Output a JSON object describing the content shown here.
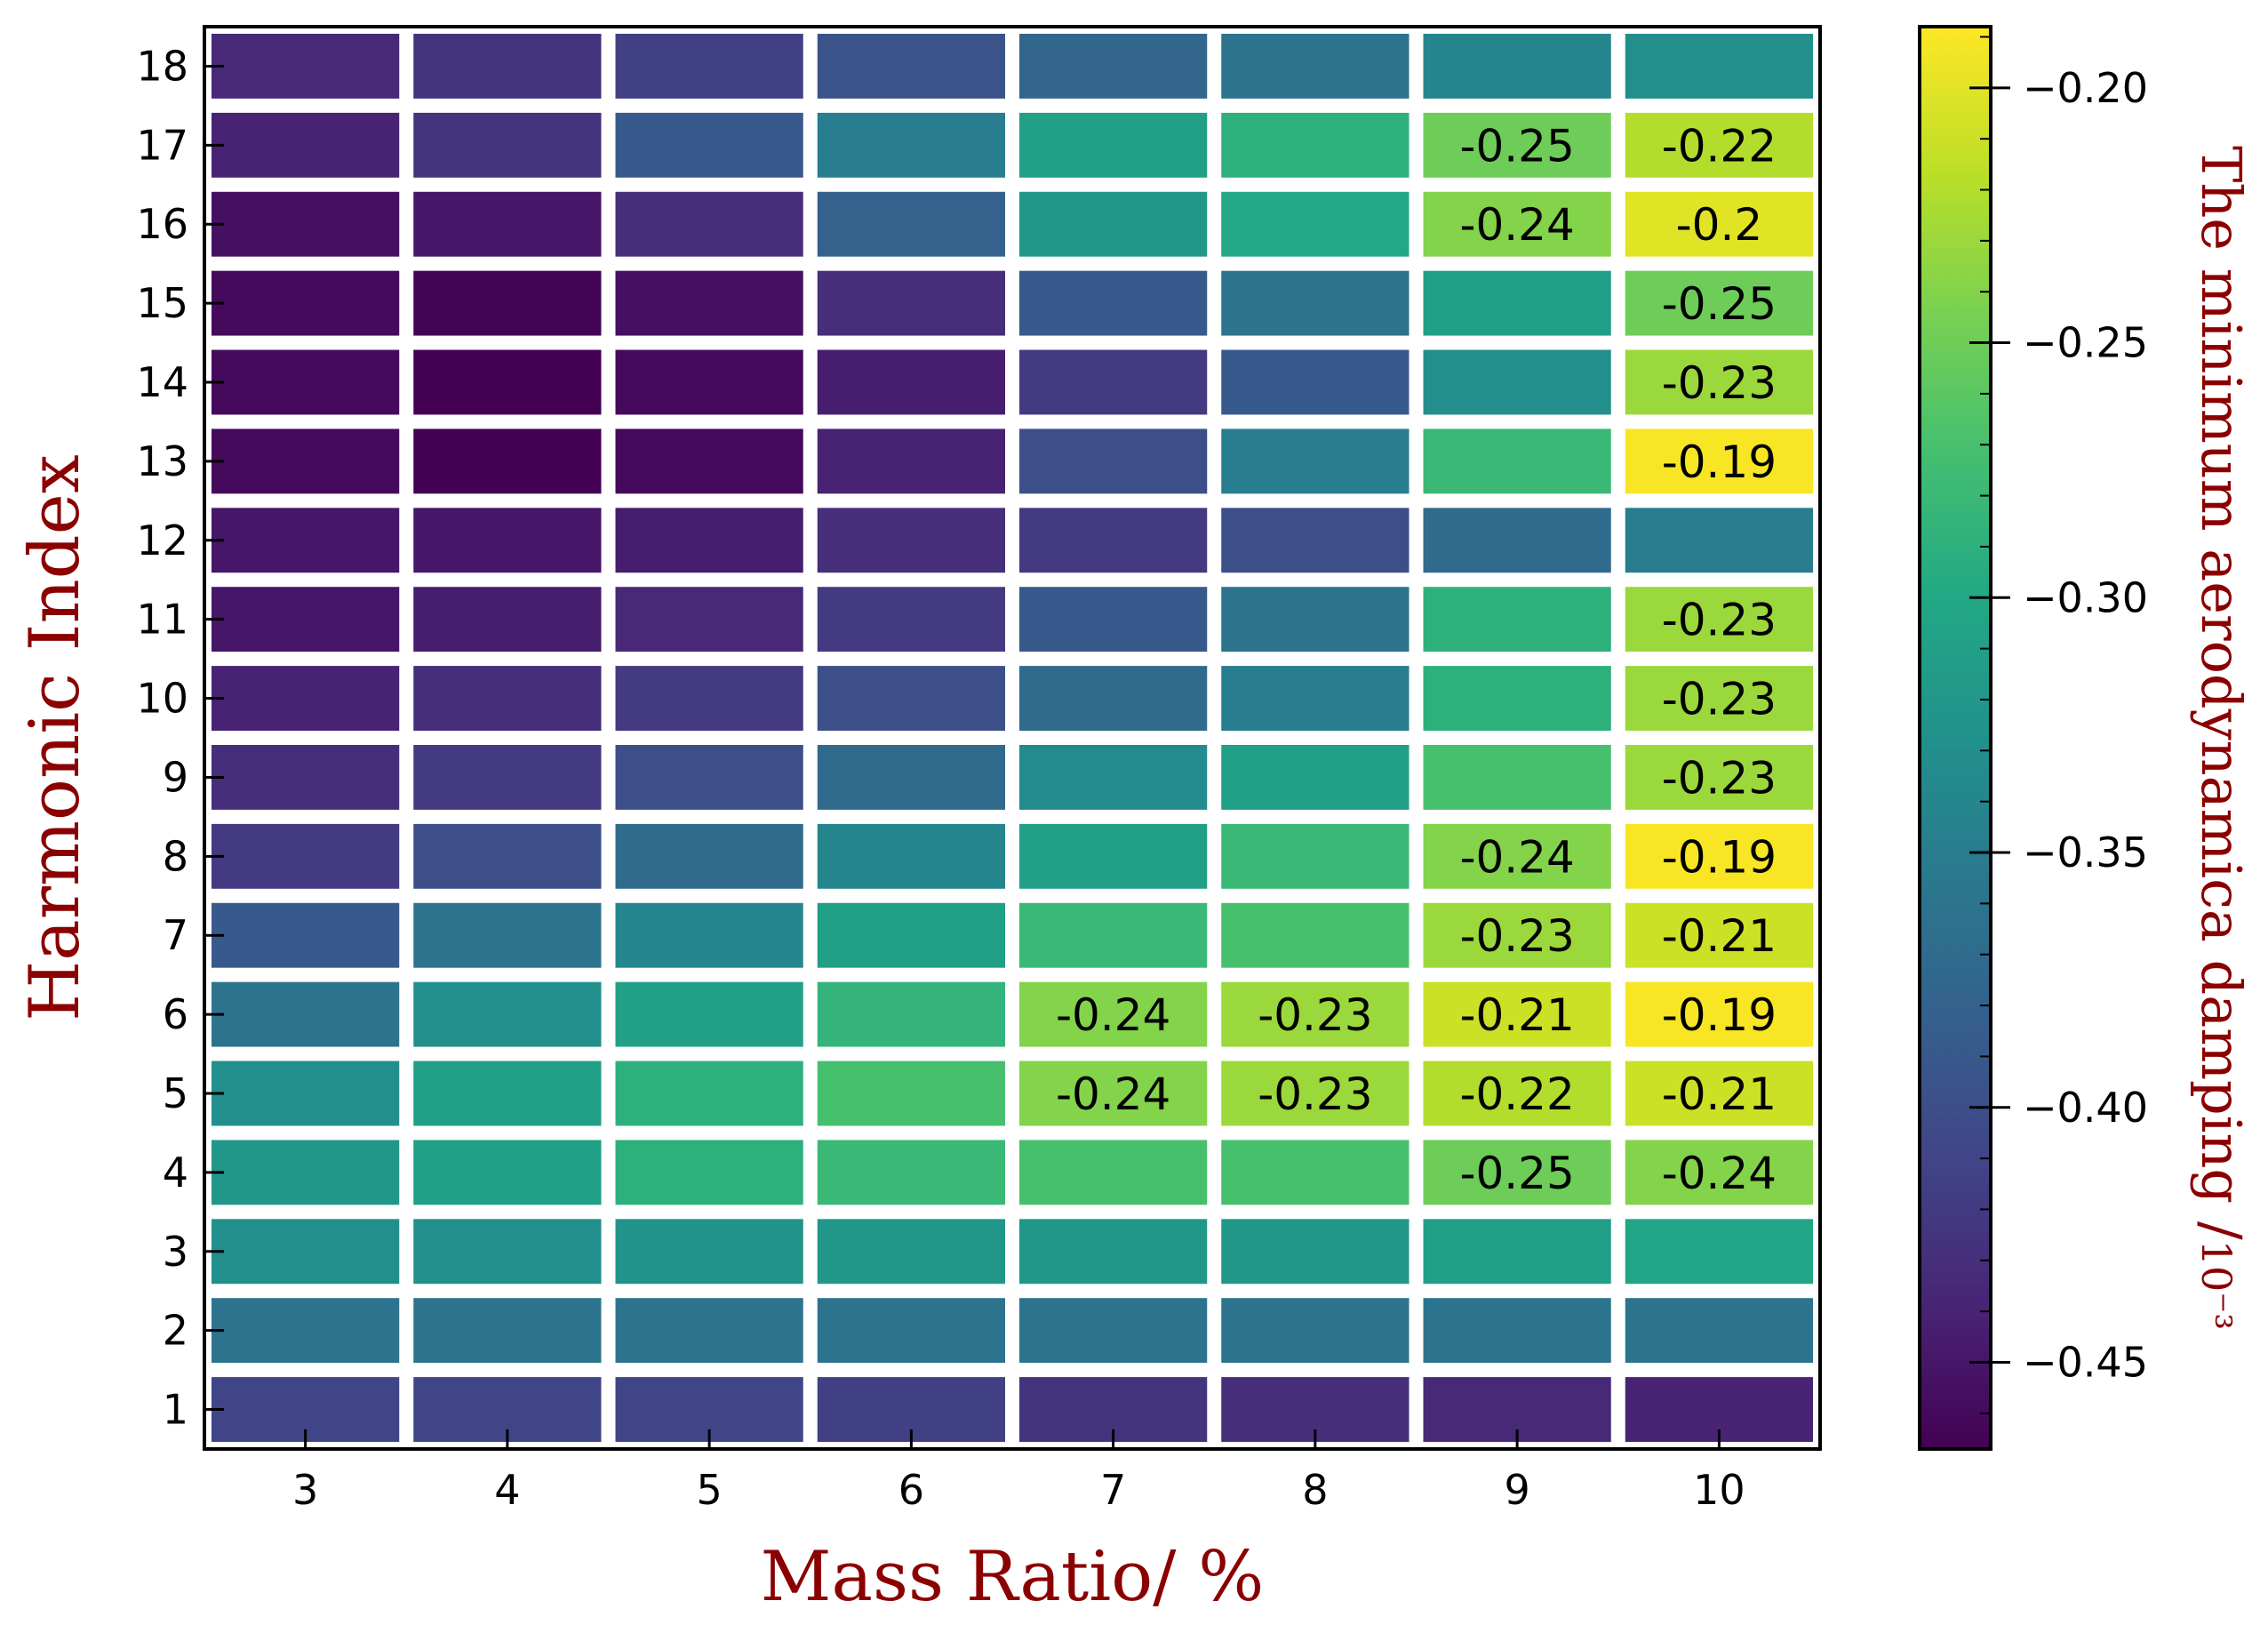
{
  "chart_data": {
    "type": "heatmap",
    "title": "",
    "xlabel": "Mass Ratio/ %",
    "ylabel": "Harmonic Index",
    "colorbar_label": "The minimum aerodynamica damping /",
    "colorbar_unit": "10⁻³",
    "colormap": "viridis",
    "x_categories": [
      "3",
      "4",
      "5",
      "6",
      "7",
      "8",
      "9",
      "10"
    ],
    "y_categories": [
      "1",
      "2",
      "3",
      "4",
      "5",
      "6",
      "7",
      "8",
      "9",
      "10",
      "11",
      "12",
      "13",
      "14",
      "15",
      "16",
      "17",
      "18"
    ],
    "clim": [
      -0.467,
      -0.188
    ],
    "colorbar_ticks": [
      -0.45,
      -0.4,
      -0.35,
      -0.3,
      -0.25,
      -0.2
    ],
    "colorbar_tick_labels": [
      "−0.45",
      "−0.40",
      "−0.35",
      "−0.30",
      "−0.25",
      "−0.20"
    ],
    "annotation_threshold": -0.255,
    "values": [
      [
        -0.41,
        -0.41,
        -0.41,
        -0.415,
        -0.425,
        -0.43,
        -0.435,
        -0.44
      ],
      [
        -0.36,
        -0.36,
        -0.36,
        -0.36,
        -0.36,
        -0.36,
        -0.36,
        -0.36
      ],
      [
        -0.33,
        -0.33,
        -0.325,
        -0.32,
        -0.32,
        -0.32,
        -0.31,
        -0.305
      ],
      [
        -0.32,
        -0.31,
        -0.29,
        -0.28,
        -0.27,
        -0.27,
        -0.25,
        -0.24
      ],
      [
        -0.33,
        -0.31,
        -0.29,
        -0.27,
        -0.24,
        -0.23,
        -0.22,
        -0.21
      ],
      [
        -0.36,
        -0.33,
        -0.31,
        -0.285,
        -0.24,
        -0.23,
        -0.21,
        -0.19
      ],
      [
        -0.39,
        -0.36,
        -0.34,
        -0.31,
        -0.28,
        -0.27,
        -0.23,
        -0.21
      ],
      [
        -0.42,
        -0.4,
        -0.37,
        -0.34,
        -0.31,
        -0.28,
        -0.24,
        -0.19
      ],
      [
        -0.43,
        -0.42,
        -0.4,
        -0.37,
        -0.335,
        -0.31,
        -0.27,
        -0.23
      ],
      [
        -0.44,
        -0.43,
        -0.42,
        -0.4,
        -0.37,
        -0.35,
        -0.29,
        -0.23
      ],
      [
        -0.45,
        -0.445,
        -0.435,
        -0.42,
        -0.39,
        -0.36,
        -0.29,
        -0.23
      ],
      [
        -0.45,
        -0.45,
        -0.445,
        -0.43,
        -0.42,
        -0.4,
        -0.37,
        -0.35
      ],
      [
        -0.46,
        -0.467,
        -0.46,
        -0.44,
        -0.4,
        -0.35,
        -0.28,
        -0.19
      ],
      [
        -0.46,
        -0.467,
        -0.46,
        -0.445,
        -0.42,
        -0.39,
        -0.33,
        -0.23
      ],
      [
        -0.46,
        -0.465,
        -0.455,
        -0.43,
        -0.39,
        -0.36,
        -0.31,
        -0.25
      ],
      [
        -0.455,
        -0.45,
        -0.43,
        -0.38,
        -0.32,
        -0.3,
        -0.24,
        -0.2
      ],
      [
        -0.44,
        -0.425,
        -0.39,
        -0.35,
        -0.31,
        -0.29,
        -0.25,
        -0.22
      ],
      [
        -0.435,
        -0.425,
        -0.415,
        -0.395,
        -0.375,
        -0.36,
        -0.34,
        -0.33
      ]
    ],
    "annotations": [
      {
        "x": "9",
        "y": "17",
        "text": "-0.25"
      },
      {
        "x": "10",
        "y": "17",
        "text": "-0.22"
      },
      {
        "x": "9",
        "y": "16",
        "text": "-0.24"
      },
      {
        "x": "10",
        "y": "16",
        "text": "-0.2"
      },
      {
        "x": "10",
        "y": "15",
        "text": "-0.25"
      },
      {
        "x": "10",
        "y": "14",
        "text": "-0.23"
      },
      {
        "x": "10",
        "y": "13",
        "text": "-0.19"
      },
      {
        "x": "10",
        "y": "11",
        "text": "-0.23"
      },
      {
        "x": "10",
        "y": "10",
        "text": "-0.23"
      },
      {
        "x": "10",
        "y": "9",
        "text": "-0.23"
      },
      {
        "x": "9",
        "y": "8",
        "text": "-0.24"
      },
      {
        "x": "10",
        "y": "8",
        "text": "-0.19"
      },
      {
        "x": "9",
        "y": "7",
        "text": "-0.23"
      },
      {
        "x": "10",
        "y": "7",
        "text": "-0.21"
      },
      {
        "x": "7",
        "y": "6",
        "text": "-0.24"
      },
      {
        "x": "8",
        "y": "6",
        "text": "-0.23"
      },
      {
        "x": "9",
        "y": "6",
        "text": "-0.21"
      },
      {
        "x": "10",
        "y": "6",
        "text": "-0.19"
      },
      {
        "x": "7",
        "y": "5",
        "text": "-0.24"
      },
      {
        "x": "8",
        "y": "5",
        "text": "-0.23"
      },
      {
        "x": "9",
        "y": "5",
        "text": "-0.22"
      },
      {
        "x": "10",
        "y": "5",
        "text": "-0.21"
      },
      {
        "x": "9",
        "y": "4",
        "text": "-0.25"
      },
      {
        "x": "10",
        "y": "4",
        "text": "-0.24"
      }
    ]
  }
}
